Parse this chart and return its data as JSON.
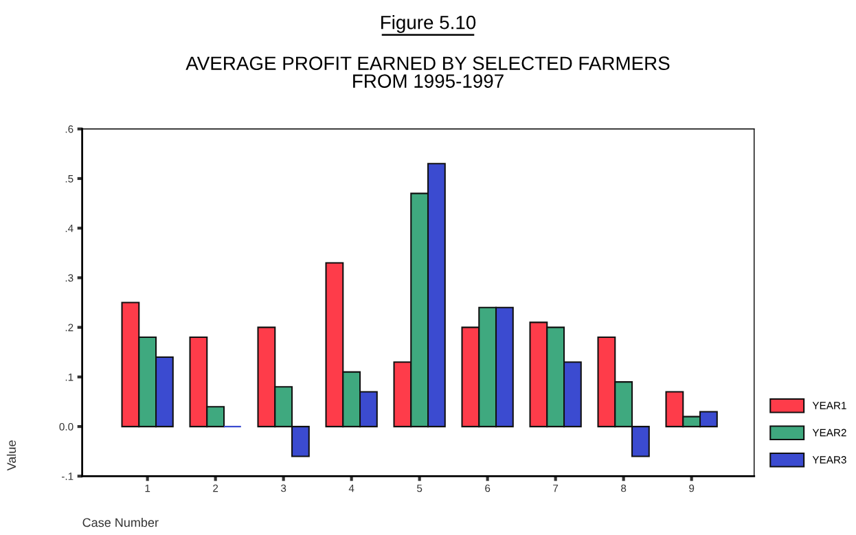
{
  "chart_data": {
    "type": "bar",
    "title": "Figure 5.10",
    "subtitle": "AVERAGE PROFIT EARNED BY SELECTED FARMERS\nFROM 1995-1997",
    "xlabel": "Case Number",
    "ylabel": "Value",
    "categories": [
      "1",
      "2",
      "3",
      "4",
      "5",
      "6",
      "7",
      "8",
      "9"
    ],
    "series": [
      {
        "name": "YEAR1",
        "color": "#fe3c4a",
        "values": [
          0.25,
          0.18,
          0.2,
          0.33,
          0.13,
          0.2,
          0.21,
          0.18,
          0.07
        ]
      },
      {
        "name": "YEAR2",
        "color": "#3fa97f",
        "values": [
          0.18,
          0.04,
          0.08,
          0.11,
          0.47,
          0.24,
          0.2,
          0.09,
          0.02
        ]
      },
      {
        "name": "YEAR3",
        "color": "#3b4bd0",
        "values": [
          0.14,
          0.0,
          -0.06,
          0.07,
          0.53,
          0.24,
          0.13,
          -0.06,
          0.03
        ]
      }
    ],
    "ylim": [
      -0.1,
      0.6
    ],
    "yticks": [
      {
        "value": -0.1,
        "label": "-.1"
      },
      {
        "value": 0,
        "label": "0.0"
      },
      {
        "value": 0.1,
        "label": ".1"
      },
      {
        "value": 0.2,
        "label": ".2"
      },
      {
        "value": 0.3,
        "label": ".3"
      },
      {
        "value": 0.4,
        "label": ".4"
      },
      {
        "value": 0.5,
        "label": ".5"
      },
      {
        "value": 0.6,
        "label": ".6"
      }
    ],
    "grid": false,
    "legend": "right"
  }
}
